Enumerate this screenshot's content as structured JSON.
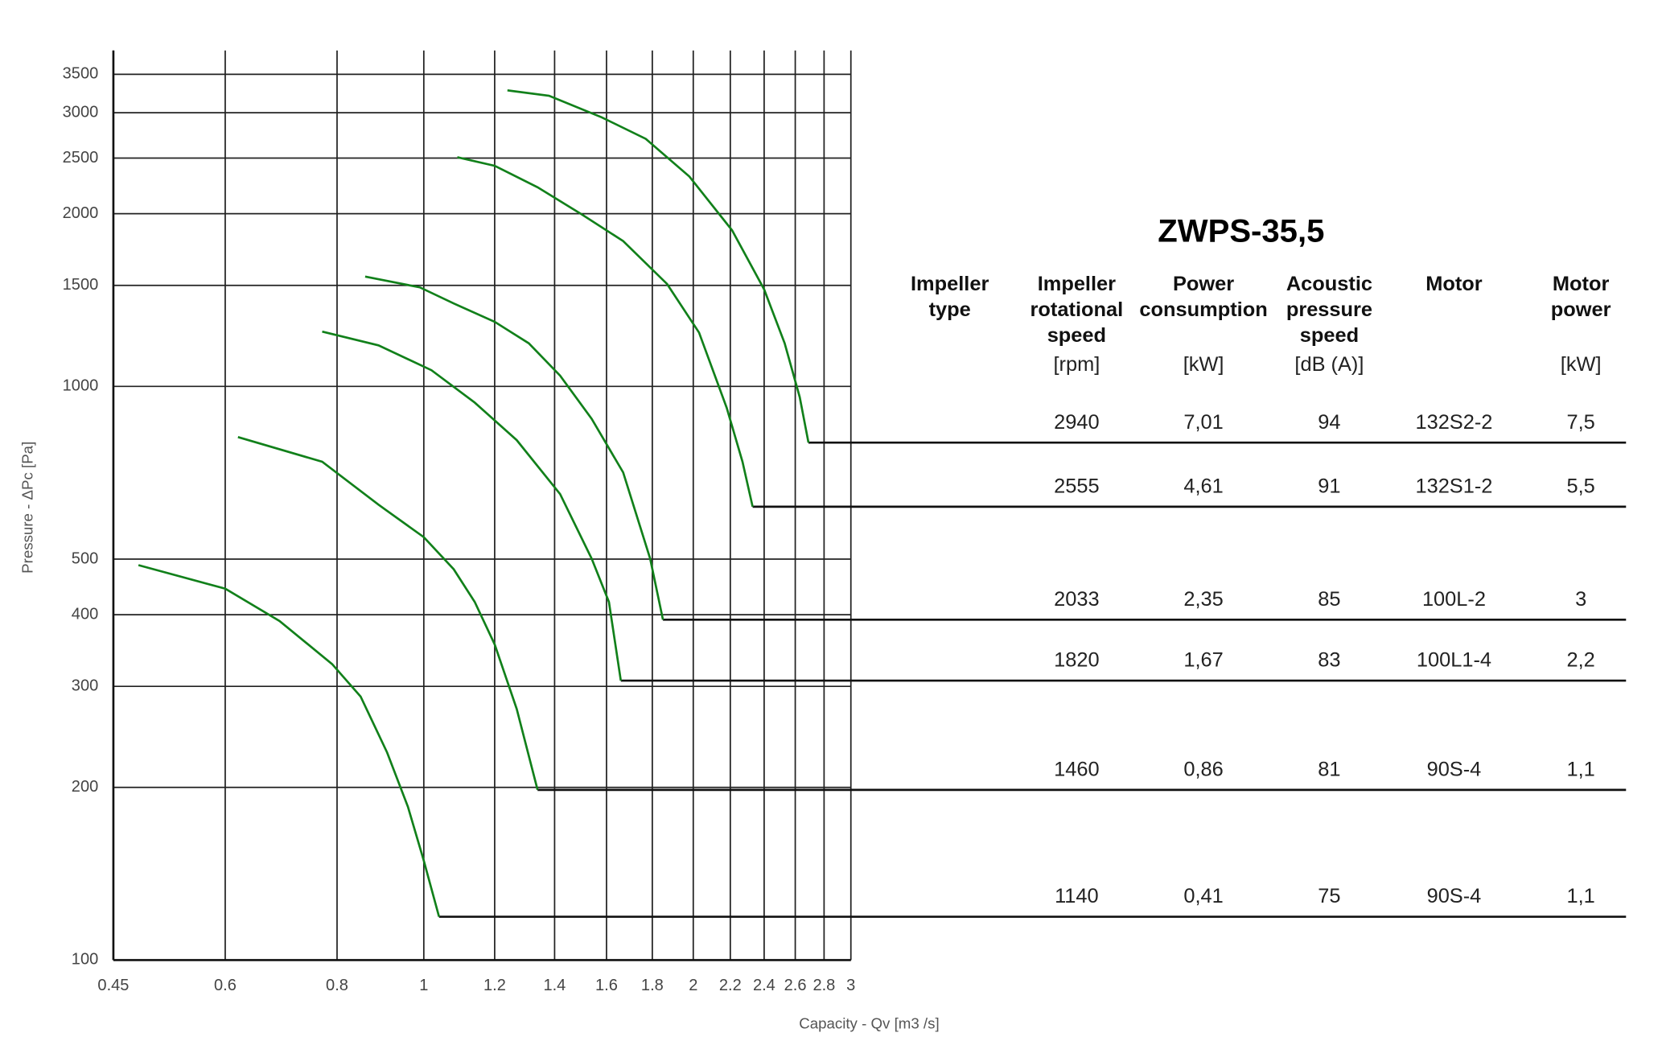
{
  "chart_data": {
    "type": "line",
    "xlabel": "Capacity - Qv [m3 /s]",
    "ylabel": "Pressure - ΔPc [Pa]",
    "xscale": "log",
    "yscale": "log",
    "grid": true,
    "xlim": [
      0.45,
      3
    ],
    "ylim": [
      100,
      3850
    ],
    "xticks": [
      0.45,
      0.6,
      0.8,
      1,
      1.2,
      1.4,
      1.6,
      1.8,
      2,
      2.2,
      2.4,
      2.6,
      2.8,
      3
    ],
    "yticks": [
      100,
      200,
      300,
      400,
      500,
      1000,
      1500,
      2000,
      2500,
      3000,
      3500
    ],
    "series": [
      {
        "color": "#11801a",
        "x": [
          1.24,
          1.38,
          1.58,
          1.77,
          1.98,
          2.21,
          2.4,
          2.53,
          2.63,
          2.69
        ],
        "values": [
          3281,
          3211,
          2945,
          2701,
          2322,
          1871,
          1476,
          1189,
          958,
          798
        ]
      },
      {
        "color": "#11801a",
        "x": [
          1.09,
          1.2,
          1.34,
          1.5,
          1.67,
          1.87,
          2.03,
          2.18,
          2.27,
          2.33
        ],
        "values": [
          2509,
          2424,
          2224,
          1996,
          1792,
          1508,
          1241,
          917,
          739,
          617
        ]
      },
      {
        "color": "#11801a",
        "x": [
          0.86,
          0.99,
          1.08,
          1.2,
          1.31,
          1.42,
          1.54,
          1.67,
          1.79,
          1.85
        ],
        "values": [
          1554,
          1488,
          1395,
          1296,
          1189,
          1044,
          878,
          708,
          501,
          392
        ]
      },
      {
        "color": "#11801a",
        "x": [
          0.77,
          0.89,
          1.02,
          1.14,
          1.27,
          1.42,
          1.54,
          1.61,
          1.66
        ],
        "values": [
          1246,
          1179,
          1067,
          937,
          806,
          649,
          501,
          421,
          307
        ]
      },
      {
        "color": "#11801a",
        "x": [
          0.62,
          0.77,
          0.89,
          1.0,
          1.08,
          1.14,
          1.2,
          1.27,
          1.34
        ],
        "values": [
          816,
          739,
          622,
          546,
          480,
          421,
          355,
          274,
          198
        ]
      },
      {
        "color": "#11801a",
        "x": [
          0.48,
          0.6,
          0.69,
          0.79,
          0.85,
          0.91,
          0.96,
          1.0,
          1.04
        ],
        "values": [
          488,
          444,
          390,
          328,
          288,
          230,
          185,
          149,
          119
        ]
      }
    ]
  },
  "table": {
    "title": "ZWPS-35,5",
    "columns": [
      {
        "label": [
          "Impeller",
          "type"
        ]
      },
      {
        "label": [
          "Impeller",
          "rotational",
          "speed"
        ],
        "unit": "[rpm]"
      },
      {
        "label": [
          "Power",
          "consumption"
        ],
        "unit": "[kW]"
      },
      {
        "label": [
          "Acoustic",
          "pressure",
          "speed"
        ],
        "unit": "[dB (A)]"
      },
      {
        "label": [
          "Motor"
        ]
      },
      {
        "label": [
          "Motor",
          "power"
        ],
        "unit": "[kW]"
      }
    ],
    "rows": [
      [
        "2940",
        "7,01",
        "94",
        "132S2-2",
        "7,5"
      ],
      [
        "2555",
        "4,61",
        "91",
        "132S1-2",
        "5,5"
      ],
      [
        "2033",
        "2,35",
        "85",
        "100L-2",
        "3"
      ],
      [
        "1820",
        "1,67",
        "83",
        "100L1-4",
        "2,2"
      ],
      [
        "1460",
        "0,86",
        "81",
        "90S-4",
        "1,1"
      ],
      [
        "1140",
        "0,41",
        "75",
        "90S-4",
        "1,1"
      ]
    ]
  }
}
